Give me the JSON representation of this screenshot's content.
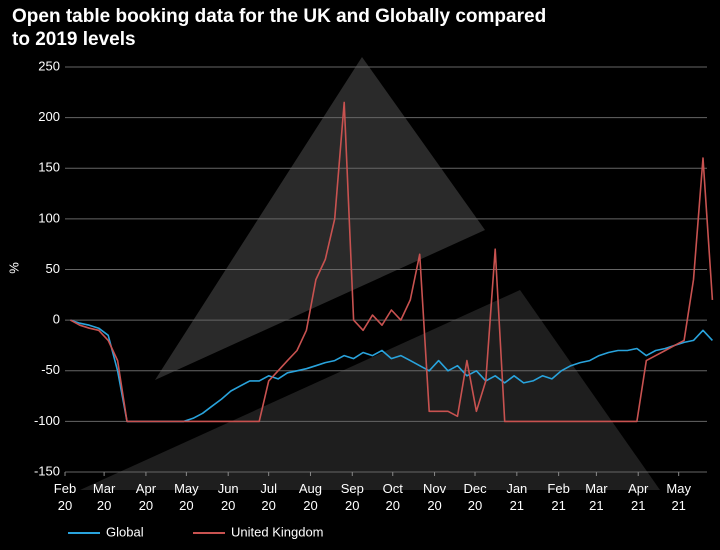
{
  "chart_data": {
    "type": "line",
    "title": "Open table booking data for the UK and Globally compared to 2019 levels",
    "y_label": "%",
    "x": [
      4,
      11,
      18,
      25,
      32,
      39,
      46,
      53,
      60,
      67,
      74,
      81,
      88,
      95,
      102,
      109,
      116,
      123,
      130,
      137,
      144,
      151,
      158,
      165,
      172,
      179,
      186,
      193,
      200,
      207,
      214,
      221,
      228,
      235,
      242,
      249,
      256,
      263,
      270,
      277,
      284,
      291,
      298,
      305,
      312,
      319,
      326,
      333,
      340,
      347,
      354,
      361,
      368,
      375,
      382,
      389,
      396,
      403,
      410,
      417,
      424,
      431,
      438,
      445,
      452,
      459,
      466,
      473,
      480
    ],
    "series": [
      {
        "name": "Global",
        "color": "#29a3dc",
        "values": [
          0,
          -3,
          -5,
          -8,
          -15,
          -50,
          -100,
          -100,
          -100,
          -100,
          -100,
          -100,
          -100,
          -97,
          -92,
          -85,
          -78,
          -70,
          -65,
          -60,
          -60,
          -55,
          -58,
          -52,
          -50,
          -48,
          -45,
          -42,
          -40,
          -35,
          -38,
          -32,
          -35,
          -30,
          -38,
          -35,
          -40,
          -45,
          -50,
          -40,
          -50,
          -45,
          -55,
          -50,
          -60,
          -55,
          -62,
          -55,
          -62,
          -60,
          -55,
          -58,
          -50,
          -45,
          -42,
          -40,
          -35,
          -32,
          -30,
          -30,
          -28,
          -35,
          -30,
          -28,
          -25,
          -22,
          -20,
          -10,
          -20
        ]
      },
      {
        "name": "United Kingdom",
        "color": "#c85250",
        "values": [
          0,
          -5,
          -8,
          -10,
          -20,
          -40,
          -100,
          -100,
          -100,
          -100,
          -100,
          -100,
          -100,
          -100,
          -100,
          -100,
          -100,
          -100,
          -100,
          -100,
          -100,
          -60,
          -50,
          -40,
          -30,
          -10,
          40,
          60,
          100,
          215,
          0,
          -10,
          5,
          -5,
          10,
          0,
          20,
          65,
          -90,
          -90,
          -90,
          -95,
          -40,
          -90,
          -60,
          70,
          -100,
          -100,
          -100,
          -100,
          -100,
          -100,
          -100,
          -100,
          -100,
          -100,
          -100,
          -100,
          -100,
          -100,
          -100,
          -40,
          -35,
          -30,
          -25,
          -20,
          40,
          160,
          20
        ]
      }
    ],
    "xlim": [
      0,
      476
    ],
    "xticks": [
      {
        "value": 0,
        "label": "Feb 20"
      },
      {
        "value": 29,
        "label": "Mar 20"
      },
      {
        "value": 60,
        "label": "Apr 20"
      },
      {
        "value": 90,
        "label": "May 20"
      },
      {
        "value": 121,
        "label": "Jun 20"
      },
      {
        "value": 151,
        "label": "Jul 20"
      },
      {
        "value": 182,
        "label": "Aug 20"
      },
      {
        "value": 213,
        "label": "Sep 20"
      },
      {
        "value": 243,
        "label": "Oct 20"
      },
      {
        "value": 274,
        "label": "Nov 20"
      },
      {
        "value": 304,
        "label": "Dec 20"
      },
      {
        "value": 335,
        "label": "Jan 21"
      },
      {
        "value": 366,
        "label": "Feb 21"
      },
      {
        "value": 394,
        "label": "Mar 21"
      },
      {
        "value": 425,
        "label": "Apr 21"
      },
      {
        "value": 455,
        "label": "May 21"
      }
    ],
    "ylim": [
      -150,
      250
    ],
    "yticks": [
      -150,
      -100,
      -50,
      0,
      50,
      100,
      150,
      200,
      250
    ],
    "grid": true
  }
}
